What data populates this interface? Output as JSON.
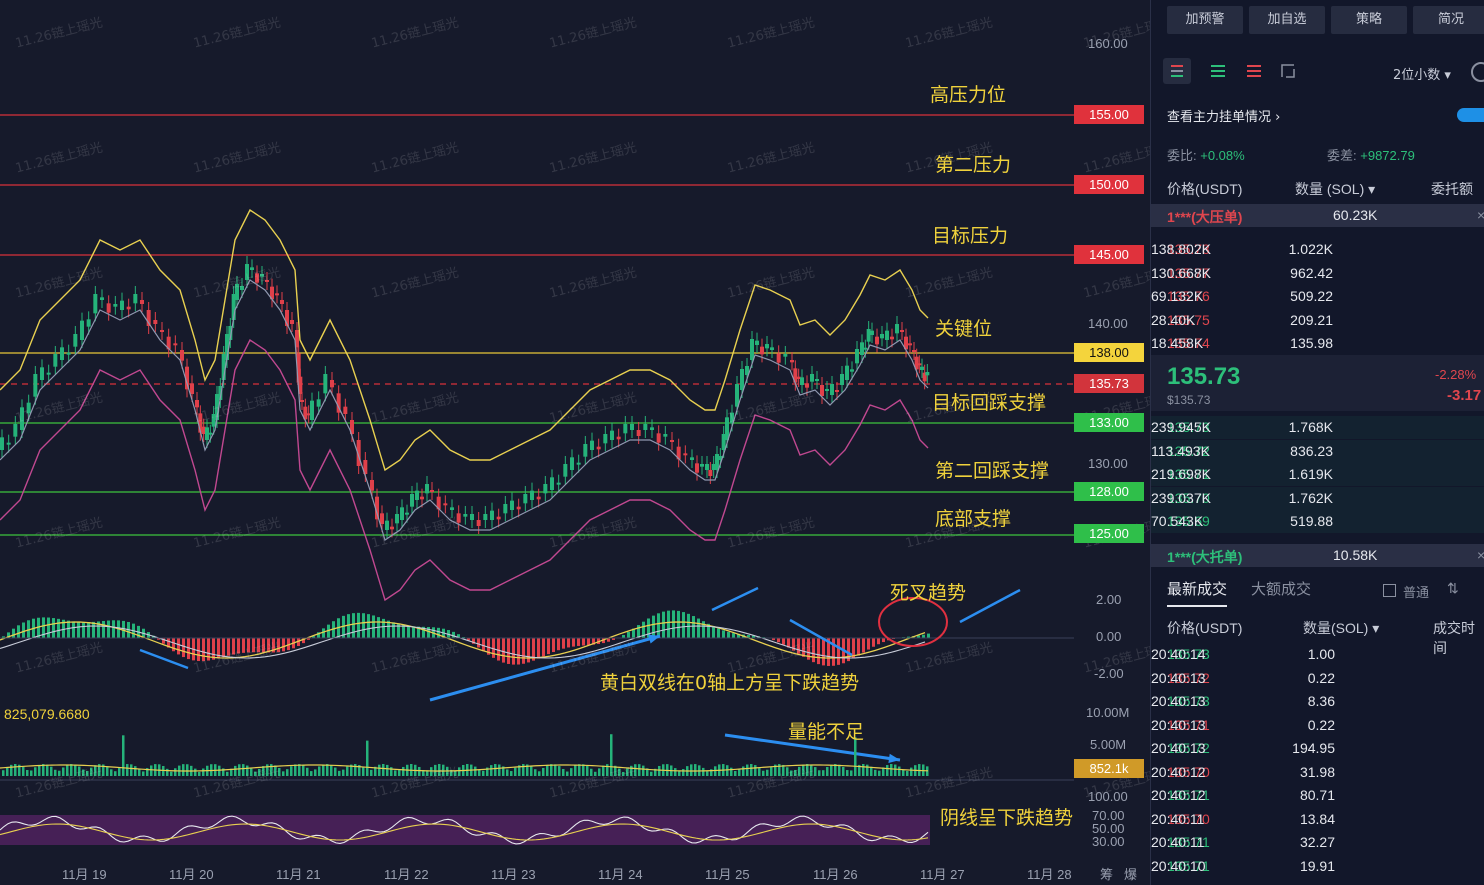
{
  "chart": {
    "levels": [
      {
        "price": "155.00",
        "label": "高压力位",
        "kind": "resistance"
      },
      {
        "price": "150.00",
        "label": "第二压力",
        "kind": "resistance"
      },
      {
        "price": "145.00",
        "label": "目标压力",
        "kind": "resistance"
      },
      {
        "price": "138.00",
        "label": "关键位",
        "kind": "key"
      },
      {
        "price": "135.73",
        "label": "",
        "kind": "current"
      },
      {
        "price": "133.00",
        "label": "目标回踩支撑",
        "kind": "support"
      },
      {
        "price": "128.00",
        "label": "第二回踩支撑",
        "kind": "support"
      },
      {
        "price": "125.00",
        "label": "底部支撑",
        "kind": "support"
      }
    ],
    "y_ticks": [
      "160.00",
      "140.00",
      "130.00"
    ],
    "x_ticks": [
      "11月 19",
      "11月 20",
      "11月 21",
      "11月 22",
      "11月 23",
      "11月 24",
      "11月 25",
      "11月 26",
      "11月 27",
      "11月 28"
    ],
    "x_extra": [
      "筹",
      "爆"
    ],
    "macd": {
      "ticks": [
        "2.00",
        "0.00",
        "-2.00"
      ],
      "note_death_cross": "死叉趋势",
      "note_trend": "黄白双线在0轴上方呈下跌趋势"
    },
    "volume": {
      "readout": "825,079.6680",
      "ticks": [
        "10.00M",
        "5.00M"
      ],
      "current": "852.1k",
      "note": "量能不足"
    },
    "rsi": {
      "ticks": [
        "100.00",
        "70.00",
        "50.00",
        "30.00"
      ],
      "note": "阴线呈下跌趋势"
    },
    "watermark": "11.26链上瑶光"
  },
  "panel": {
    "top_buttons": [
      "加预警",
      "加自选",
      "策略",
      "简况"
    ],
    "decimals": "2位小数",
    "view_main_orders": "查看主力挂单情况",
    "ratio_label": "委比:",
    "ratio_value": "+0.08%",
    "diff_label": "委差:",
    "diff_value": "+9872.79",
    "headers": [
      "价格(USDT)",
      "数量 (SOL)",
      "委托额"
    ],
    "big_ask": {
      "label": "1***(大压单)",
      "qty": "60.23K"
    },
    "asks": [
      {
        "price": "135.78",
        "qty": "1.022K",
        "amount": "138.802K"
      },
      {
        "price": "135.77",
        "qty": "962.42",
        "amount": "130.668K"
      },
      {
        "price": "135.76",
        "qty": "509.22",
        "amount": "69.132K"
      },
      {
        "price": "135.75",
        "qty": "209.21",
        "amount": "28.40K"
      },
      {
        "price": "135.74",
        "qty": "135.98",
        "amount": "18.458K"
      }
    ],
    "last_price": "135.73",
    "last_price_sub": "$135.73",
    "change_pct": "-2.28%",
    "change_abs": "-3.17",
    "bids": [
      {
        "price": "135.73",
        "qty": "1.768K",
        "amount": "239.945K"
      },
      {
        "price": "135.72",
        "qty": "836.23",
        "amount": "113.493K"
      },
      {
        "price": "135.71",
        "qty": "1.619K",
        "amount": "219.698K"
      },
      {
        "price": "135.70",
        "qty": "1.762K",
        "amount": "239.037K"
      },
      {
        "price": "135.69",
        "qty": "519.88",
        "amount": "70.543K"
      }
    ],
    "big_bid": {
      "label": "1***(大托单)",
      "qty": "10.58K"
    },
    "trades_tabs": [
      "最新成交",
      "大额成交"
    ],
    "trades_option": "普通",
    "trade_headers": [
      "价格(USDT)",
      "数量(SOL)",
      "成交时间"
    ],
    "trades": [
      {
        "price": "135.73",
        "side": "buy",
        "qty": "1.00",
        "time": "20:40:14"
      },
      {
        "price": "135.72",
        "side": "sell",
        "qty": "0.22",
        "time": "20:40:13"
      },
      {
        "price": "135.73",
        "side": "buy",
        "qty": "8.36",
        "time": "20:40:13"
      },
      {
        "price": "135.71",
        "side": "sell",
        "qty": "0.22",
        "time": "20:40:13"
      },
      {
        "price": "135.72",
        "side": "buy",
        "qty": "194.95",
        "time": "20:40:13"
      },
      {
        "price": "135.70",
        "side": "sell",
        "qty": "31.98",
        "time": "20:40:12"
      },
      {
        "price": "135.71",
        "side": "buy",
        "qty": "80.71",
        "time": "20:40:12"
      },
      {
        "price": "135.70",
        "side": "sell",
        "qty": "13.84",
        "time": "20:40:11"
      },
      {
        "price": "135.71",
        "side": "buy",
        "qty": "32.27",
        "time": "20:40:11"
      },
      {
        "price": "135.71",
        "side": "buy",
        "qty": "19.91",
        "time": "20:40:10"
      }
    ]
  }
}
